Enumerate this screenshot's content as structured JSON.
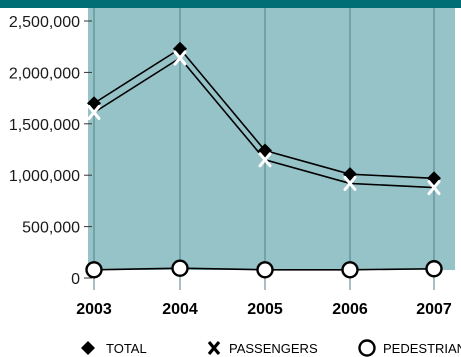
{
  "chart_data": {
    "type": "line",
    "title": "",
    "xlabel": "",
    "ylabel": "",
    "categories": [
      "2003",
      "2004",
      "2005",
      "2006",
      "2007"
    ],
    "ylim": [
      0,
      2500000
    ],
    "yticks": [
      0,
      500000,
      1000000,
      1500000,
      2000000,
      2500000
    ],
    "ytick_labels": [
      "0",
      "500,000",
      "1,000,000",
      "1,500,000",
      "2,000,000",
      "2,500,000"
    ],
    "grid": "vertical",
    "legend_position": "bottom",
    "colors": {
      "plot_background": "#96c3c8",
      "top_band": "#006f75",
      "line": "#000000",
      "grid": "#4f7f84",
      "passenger_marker": "#ffffff",
      "pedestrian_fill": "#ffffff"
    },
    "series": [
      {
        "name": "TOTAL",
        "marker": "diamond",
        "values": [
          1700000,
          2230000,
          1240000,
          1010000,
          970000
        ]
      },
      {
        "name": "PASSENGERS",
        "marker": "x",
        "values": [
          1610000,
          2140000,
          1150000,
          920000,
          880000
        ]
      },
      {
        "name": "PEDESTRIANS",
        "marker": "circle",
        "values": [
          80000,
          95000,
          80000,
          80000,
          90000
        ]
      }
    ]
  }
}
